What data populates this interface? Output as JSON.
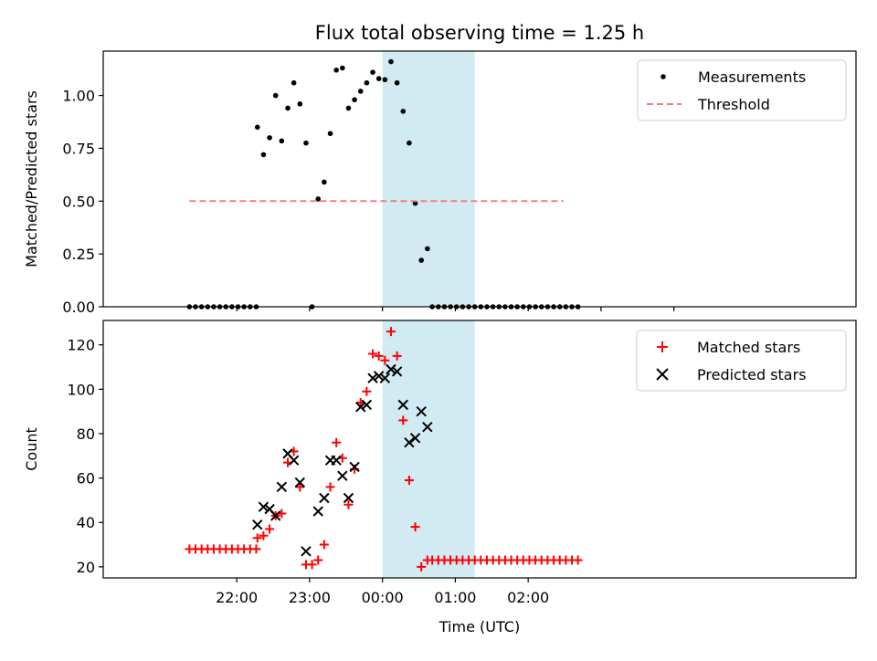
{
  "title": "Flux total observing time = 1.25 h",
  "chart_data": [
    {
      "type": "scatter",
      "ylabel": "Matched/Predicted stars",
      "xlabel": "",
      "xlim": [
        -110,
        510
      ],
      "ylim": [
        0,
        1.21
      ],
      "yticks": [
        {
          "v": 0.0,
          "label": "0.00"
        },
        {
          "v": 0.25,
          "label": "0.25"
        },
        {
          "v": 0.5,
          "label": "0.50"
        },
        {
          "v": 0.75,
          "label": "0.75"
        },
        {
          "v": 1.0,
          "label": "1.00"
        }
      ],
      "xticks": [
        0,
        60,
        120,
        180,
        240,
        300,
        360
      ],
      "shaded_span": {
        "x": [
          120,
          196
        ],
        "color": "#add8e6"
      },
      "legend": {
        "placement": "top-right",
        "entries": [
          "Measurements",
          "Threshold"
        ]
      },
      "series": [
        {
          "name": "Measurements",
          "marker": "dot",
          "color": "#000000",
          "points": [
            [
              -39,
              0
            ],
            [
              -34,
              0
            ],
            [
              -29,
              0
            ],
            [
              -24,
              0
            ],
            [
              -19,
              0
            ],
            [
              -14,
              0
            ],
            [
              -9,
              0
            ],
            [
              -4,
              0
            ],
            [
              1,
              0
            ],
            [
              6,
              0
            ],
            [
              11,
              0
            ],
            [
              16,
              0
            ],
            [
              17,
              0.85
            ],
            [
              22,
              0.72
            ],
            [
              27,
              0.8
            ],
            [
              32,
              1.0
            ],
            [
              37,
              0.785
            ],
            [
              42,
              0.94
            ],
            [
              47,
              1.06
            ],
            [
              52,
              0.96
            ],
            [
              57,
              0.775
            ],
            [
              62,
              0
            ],
            [
              67,
              0.51
            ],
            [
              72,
              0.59
            ],
            [
              77,
              0.82
            ],
            [
              82,
              1.12
            ],
            [
              87,
              1.13
            ],
            [
              92,
              0.94
            ],
            [
              97,
              0.98
            ],
            [
              102,
              1.02
            ],
            [
              107,
              1.06
            ],
            [
              112,
              1.11
            ],
            [
              117,
              1.08
            ],
            [
              122,
              1.075
            ],
            [
              127,
              1.16
            ],
            [
              132,
              1.06
            ],
            [
              137,
              0.925
            ],
            [
              142,
              0.775
            ],
            [
              147,
              0.49
            ],
            [
              152,
              0.22
            ],
            [
              157,
              0.275
            ],
            [
              161,
              0
            ],
            [
              166,
              0
            ],
            [
              171,
              0
            ],
            [
              176,
              0
            ],
            [
              181,
              0
            ],
            [
              186,
              0
            ],
            [
              191,
              0
            ],
            [
              196,
              0
            ],
            [
              201,
              0
            ],
            [
              206,
              0
            ],
            [
              211,
              0
            ],
            [
              216,
              0
            ],
            [
              221,
              0
            ],
            [
              226,
              0
            ],
            [
              231,
              0
            ],
            [
              236,
              0
            ],
            [
              241,
              0
            ],
            [
              246,
              0
            ],
            [
              251,
              0
            ],
            [
              256,
              0
            ],
            [
              261,
              0
            ],
            [
              266,
              0
            ],
            [
              271,
              0
            ],
            [
              276,
              0
            ],
            [
              281,
              0
            ]
          ]
        },
        {
          "name": "Threshold",
          "marker": "dashed-line",
          "color": "#f08080",
          "x": [
            -39,
            269
          ],
          "y": [
            0.5,
            0.5
          ]
        }
      ]
    },
    {
      "type": "scatter",
      "ylabel": "Count",
      "xlabel": "Time (UTC)",
      "xlim": [
        -110,
        510
      ],
      "ylim": [
        15,
        131
      ],
      "yticks": [
        20,
        40,
        60,
        80,
        100,
        120
      ],
      "xticks": [
        {
          "v": 0,
          "label": "22:00"
        },
        {
          "v": 60,
          "label": "23:00"
        },
        {
          "v": 120,
          "label": "00:00"
        },
        {
          "v": 180,
          "label": "01:00"
        },
        {
          "v": 240,
          "label": "02:00"
        }
      ],
      "shaded_span": {
        "x": [
          120,
          196
        ],
        "color": "#add8e6"
      },
      "legend": {
        "placement": "top-right",
        "entries": [
          "Matched stars",
          "Predicted stars"
        ]
      },
      "series": [
        {
          "name": "Matched stars",
          "marker": "plus",
          "color": "#ff0000",
          "points": [
            [
              -39,
              28
            ],
            [
              -34,
              28
            ],
            [
              -29,
              28
            ],
            [
              -24,
              28
            ],
            [
              -19,
              28
            ],
            [
              -14,
              28
            ],
            [
              -9,
              28
            ],
            [
              -4,
              28
            ],
            [
              1,
              28
            ],
            [
              6,
              28
            ],
            [
              11,
              28
            ],
            [
              16,
              28
            ],
            [
              17,
              33
            ],
            [
              22,
              34
            ],
            [
              27,
              37
            ],
            [
              32,
              43
            ],
            [
              37,
              44
            ],
            [
              42,
              67
            ],
            [
              47,
              72
            ],
            [
              52,
              56
            ],
            [
              57,
              21
            ],
            [
              62,
              21
            ],
            [
              67,
              23
            ],
            [
              72,
              30
            ],
            [
              77,
              56
            ],
            [
              82,
              76
            ],
            [
              87,
              69
            ],
            [
              92,
              48
            ],
            [
              97,
              64
            ],
            [
              102,
              94
            ],
            [
              107,
              99
            ],
            [
              112,
              116
            ],
            [
              117,
              115
            ],
            [
              122,
              113
            ],
            [
              127,
              126
            ],
            [
              132,
              115
            ],
            [
              137,
              86
            ],
            [
              142,
              59
            ],
            [
              147,
              38
            ],
            [
              152,
              20
            ],
            [
              157,
              23
            ],
            [
              161,
              23
            ],
            [
              166,
              23
            ],
            [
              171,
              23
            ],
            [
              176,
              23
            ],
            [
              181,
              23
            ],
            [
              186,
              23
            ],
            [
              191,
              23
            ],
            [
              196,
              23
            ],
            [
              201,
              23
            ],
            [
              206,
              23
            ],
            [
              211,
              23
            ],
            [
              216,
              23
            ],
            [
              221,
              23
            ],
            [
              226,
              23
            ],
            [
              231,
              23
            ],
            [
              236,
              23
            ],
            [
              241,
              23
            ],
            [
              246,
              23
            ],
            [
              251,
              23
            ],
            [
              256,
              23
            ],
            [
              261,
              23
            ],
            [
              266,
              23
            ],
            [
              271,
              23
            ],
            [
              276,
              23
            ],
            [
              281,
              23
            ]
          ]
        },
        {
          "name": "Predicted stars",
          "marker": "x",
          "color": "#000000",
          "points": [
            [
              17,
              39
            ],
            [
              22,
              47
            ],
            [
              27,
              46
            ],
            [
              32,
              43
            ],
            [
              37,
              56
            ],
            [
              42,
              71
            ],
            [
              47,
              68
            ],
            [
              52,
              58
            ],
            [
              57,
              27
            ],
            [
              67,
              45
            ],
            [
              72,
              51
            ],
            [
              77,
              68
            ],
            [
              82,
              68
            ],
            [
              87,
              61
            ],
            [
              92,
              51
            ],
            [
              97,
              65
            ],
            [
              102,
              92
            ],
            [
              107,
              93
            ],
            [
              112,
              105
            ],
            [
              117,
              106
            ],
            [
              122,
              105
            ],
            [
              127,
              109
            ],
            [
              132,
              108
            ],
            [
              137,
              93
            ],
            [
              142,
              76
            ],
            [
              147,
              78
            ],
            [
              152,
              90
            ],
            [
              157,
              83
            ]
          ]
        }
      ]
    }
  ]
}
